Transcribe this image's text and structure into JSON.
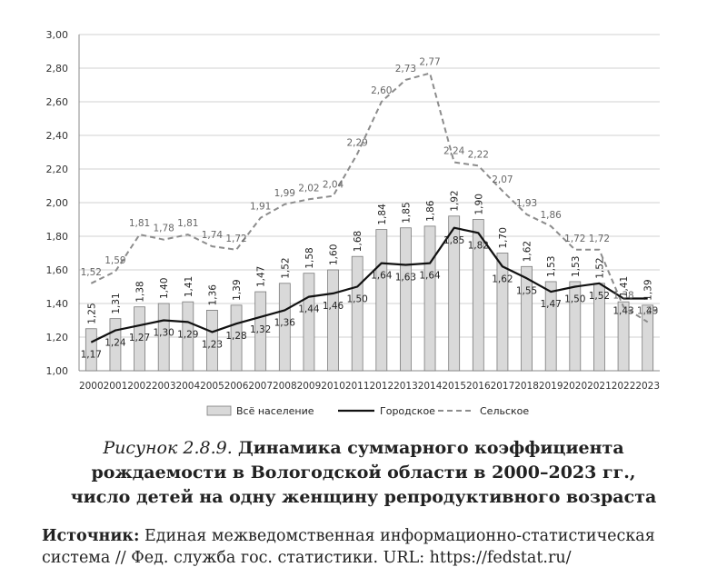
{
  "caption": {
    "figure": "Рисунок 2.8.9.",
    "line1": "Динамика суммарного коэффициента",
    "line2": "рождаемости в Вологодской области в 2000–2023 гг.,",
    "line3": "число детей на одну женщину репродуктивного возраста"
  },
  "source": {
    "label": "Источник:",
    "line1": "Единая межведомственная информационно-статистическая",
    "line2": "система // Фед. служба гос. статистики. URL: https://fedstat.ru/"
  },
  "chart_data": {
    "type": "bar",
    "categories": [
      "2000",
      "2001",
      "2002",
      "2003",
      "2004",
      "2005",
      "2006",
      "2007",
      "2008",
      "2009",
      "2010",
      "2011",
      "2012",
      "2013",
      "2014",
      "2015",
      "2016",
      "2017",
      "2018",
      "2019",
      "2020",
      "2021",
      "2022",
      "2023"
    ],
    "ylim": [
      1.0,
      3.0
    ],
    "yticks": [
      "1,00",
      "1,20",
      "1,40",
      "1,60",
      "1,80",
      "2,00",
      "2,20",
      "2,40",
      "2,60",
      "2,80",
      "3,00"
    ],
    "grid": true,
    "legend_position": "bottom",
    "series": [
      {
        "name": "Всё население",
        "type": "bar",
        "color": "#d9d9d9",
        "values": [
          1.25,
          1.31,
          1.38,
          1.4,
          1.41,
          1.36,
          1.39,
          1.47,
          1.52,
          1.58,
          1.6,
          1.68,
          1.84,
          1.85,
          1.86,
          1.92,
          1.9,
          1.7,
          1.62,
          1.53,
          1.53,
          1.52,
          1.41,
          1.39
        ],
        "labels": [
          "1,25",
          "1,31",
          "1,38",
          "1,40",
          "1,41",
          "1,36",
          "1,39",
          "1,47",
          "1,52",
          "1,58",
          "1,60",
          "1,68",
          "1,84",
          "1,85",
          "1,86",
          "1,92",
          "1,90",
          "1,70",
          "1,62",
          "1,53",
          "1,53",
          "1,52",
          "1,41",
          "1,39"
        ]
      },
      {
        "name": "Городское",
        "type": "line",
        "style": "solid",
        "color": "#111111",
        "values": [
          1.17,
          1.24,
          1.27,
          1.3,
          1.29,
          1.23,
          1.28,
          1.32,
          1.36,
          1.44,
          1.46,
          1.5,
          1.64,
          1.63,
          1.64,
          1.85,
          1.82,
          1.62,
          1.55,
          1.47,
          1.5,
          1.52,
          1.43,
          1.43
        ],
        "labels": [
          "1,17",
          "1,24",
          "1,27",
          "1,30",
          "1,29",
          "1,23",
          "1,28",
          "1,32",
          "1,36",
          "1,44",
          "1,46",
          "1,50",
          "1,64",
          "1,63",
          "1,64",
          "1,85",
          "1,82",
          "1,62",
          "1,55",
          "1,47",
          "1,50",
          "1,52",
          "1,43",
          "1,43"
        ]
      },
      {
        "name": "Сельское",
        "type": "line",
        "style": "dashed",
        "color": "#8c8c8c",
        "values": [
          1.52,
          1.59,
          1.81,
          1.78,
          1.81,
          1.74,
          1.72,
          1.91,
          1.99,
          2.02,
          2.04,
          2.29,
          2.6,
          2.73,
          2.77,
          2.24,
          2.22,
          2.07,
          1.93,
          1.86,
          1.72,
          1.72,
          1.38,
          1.29
        ],
        "labels": [
          "1,52",
          "1,59",
          "1,81",
          "1,78",
          "1,81",
          "1,74",
          "1,72",
          "1,91",
          "1,99",
          "2,02",
          "2,04",
          "2,29",
          "2,60",
          "2,73",
          "2,77",
          "2,24",
          "2,22",
          "2,07",
          "1,93",
          "1,86",
          "1,72",
          "1,72",
          "1,38",
          "1,29"
        ]
      }
    ]
  }
}
